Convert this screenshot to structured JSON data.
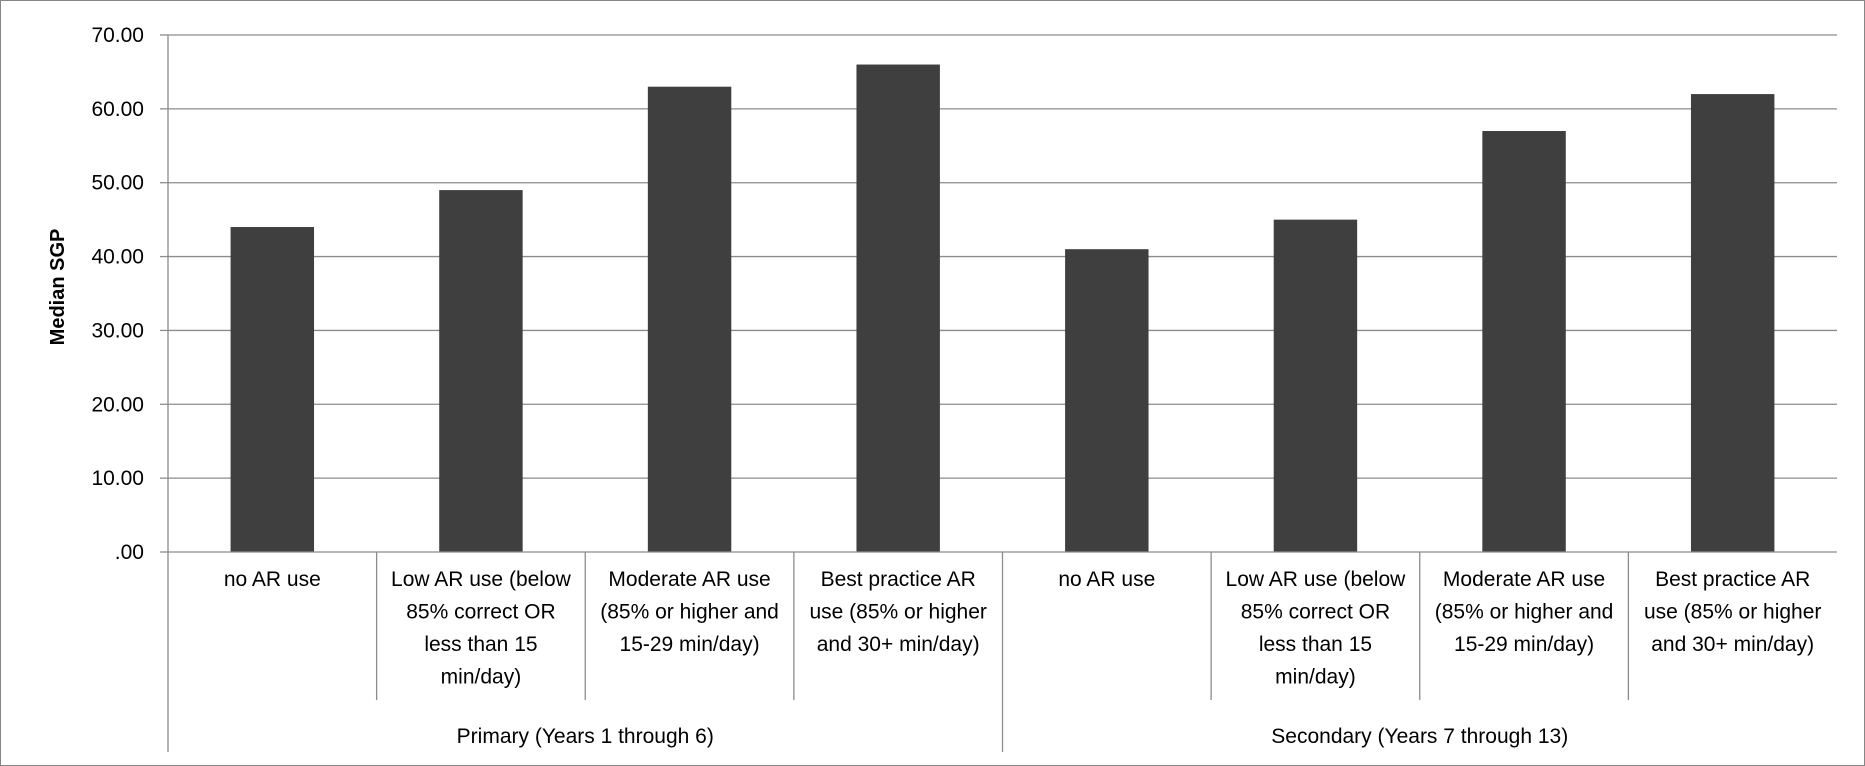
{
  "chart_data": {
    "type": "bar",
    "ylabel": "Median SGP",
    "ylim": [
      0,
      70
    ],
    "y_ticks": [
      ".00",
      "10.00",
      "20.00",
      "30.00",
      "40.00",
      "50.00",
      "60.00",
      "70.00"
    ],
    "grid": true,
    "bar_color": "#3f3f3f",
    "groups": [
      {
        "label": "Primary (Years 1 through 6)",
        "categories": [
          [
            "no AR use"
          ],
          [
            "Low AR use (below",
            "85% correct OR",
            "less than 15",
            "min/day)"
          ],
          [
            "Moderate AR use",
            "(85% or higher and",
            "15-29 min/day)"
          ],
          [
            "Best practice AR",
            "use (85% or higher",
            "and 30+ min/day)"
          ]
        ],
        "values": [
          44,
          49,
          63,
          66
        ]
      },
      {
        "label": "Secondary (Years 7 through 13)",
        "categories": [
          [
            "no AR use"
          ],
          [
            "Low AR use (below",
            "85% correct OR",
            "less than 15",
            "min/day)"
          ],
          [
            "Moderate AR use",
            "(85% or higher and",
            "15-29 min/day)"
          ],
          [
            "Best practice AR",
            "use (85% or higher",
            "and 30+ min/day)"
          ]
        ],
        "values": [
          41,
          45,
          57,
          62
        ]
      }
    ]
  }
}
